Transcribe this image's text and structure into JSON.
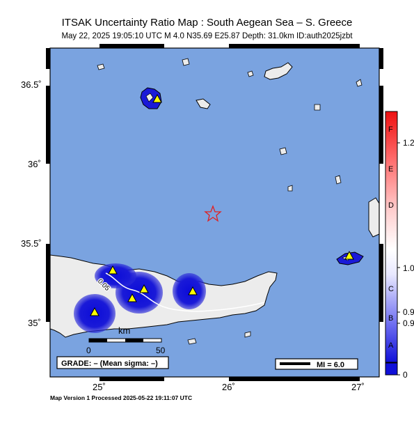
{
  "title": "ITSAK Uncertainty Ratio Map : South Aegean Sea – S. Greece",
  "subtitle": "May 22, 2025 19:05:10 UTC    M 4.0    N35.69 E25.87    Depth: 31.0km    ID:auth2025jzbt",
  "footer": "Map Version 1 Processed 2025-05-22 19:11:07 UTC",
  "axes": {
    "lat_ticks": [
      "36.5˚",
      "36˚",
      "35.5˚",
      "35˚"
    ],
    "lon_ticks": [
      "25˚",
      "26˚",
      "27˚"
    ]
  },
  "colors": {
    "sea": "#7aa3e0",
    "land": "#ececec",
    "high_uncertainty": "#1010d8",
    "epicenter": "#e02020",
    "station": "#ffff00"
  },
  "contour_label": "0.05",
  "scalebar": {
    "unit": "km",
    "start": "0",
    "end": "50"
  },
  "grade_box": "GRADE: – (Mean sigma: –)",
  "mi_legend": "MI = 6.0",
  "colorbar": {
    "letters": [
      "F",
      "E",
      "D",
      "C",
      "B",
      "A"
    ],
    "values": [
      "1.2",
      "1.0",
      "0.9",
      "0.9",
      "0"
    ]
  },
  "epicenter": {
    "lat": 35.69,
    "lon": 25.87
  },
  "stations_icon": "station-triangle-icon",
  "epicenter_icon": "star-icon"
}
